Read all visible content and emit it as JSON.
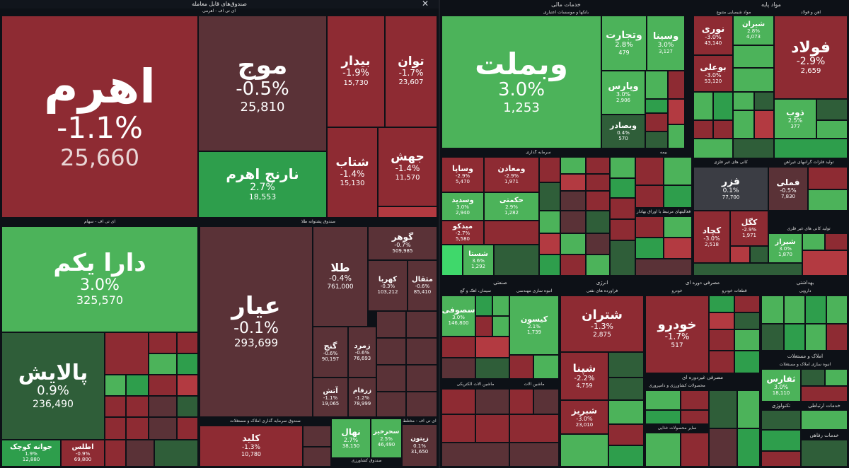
{
  "sections": {
    "etf": "صندوق‌های قابل معامله",
    "etf_leveraged": "ای تی اف - اهرمی",
    "etf_equity": "ای تی اف - سهام",
    "etf_gold": "صندوق پشتوانه طلا",
    "etf_realestate": "صندوق سرمایه گذاری املاک و مستغلات",
    "etf_agri": "صندوق کشاورزی",
    "etf_mixed": "ای تی اف - مختلط",
    "financial": "خدمات مالی",
    "banks": "بانکها و موسسات اعتباری",
    "investment": "سرمایه گذاری",
    "insurance": "بیمه",
    "financial_other": "فعالیتهای مرتبط با اوراق بهادار",
    "basic": "مواد پایه",
    "chemicals": "مواد شیمیایی متنوع",
    "steel": "آهن و فولاد",
    "nonmetal": "کانی های غیر فلزی",
    "nonmetal_products": "تولید کانی های غیر فلزی",
    "ore": "تولید فلزات گرانبهای غیرآهن",
    "industrial": "صنعتی",
    "cement": "سیمان، آهک و گچ",
    "engineering": "انبوه سازی مهندسی",
    "electrical": "ماشین آلات الکتریکی",
    "machinery": "ماشین آلات",
    "energy": "انرژی",
    "refinery": "فراورده های نفتی",
    "cyclical": "مصرفی دوره ای",
    "auto": "خودرو",
    "autoparts": "قطعات خودرو",
    "noncyclical": "مصرفی غیردوره ای",
    "agri_products": "محصولات کشاورزی و دامپروری",
    "food": "سایر محصولات غذایی",
    "health": "بهداشتی",
    "pharma": "دارویی",
    "realestate": "املاک و مستغلات",
    "construction": "انبوه سازی املاک و مستغلات",
    "tech": "تکنولوژی",
    "telecom": "خدمات ارتباطی",
    "welfare": "خدمات رفاهی"
  },
  "tiles": {
    "ahrom": {
      "name": "اهرم",
      "pct": "-1.1%",
      "val": "25,660"
    },
    "moj": {
      "name": "موج",
      "pct": "-0.5%",
      "val": "25,810"
    },
    "narenj": {
      "name": "نارنج اهرم",
      "pct": "2.7%",
      "val": "18,553"
    },
    "bidar": {
      "name": "بیدار",
      "pct": "-1.9%",
      "val": "15,730"
    },
    "tavan": {
      "name": "توان",
      "pct": "-1.7%",
      "val": "23,607"
    },
    "shetab": {
      "name": "شتاب",
      "pct": "-1.4%",
      "val": "15,130"
    },
    "jahesh": {
      "name": "جهش",
      "pct": "-1.4%",
      "val": "11,570"
    },
    "daraykom": {
      "name": "دارا یکم",
      "pct": "3.0%",
      "val": "325,570"
    },
    "palayesh": {
      "name": "پالایش",
      "pct": "0.9%",
      "val": "236,490"
    },
    "javaneh": {
      "name": "جوانه کوچک",
      "pct": "1.9%",
      "val": "12,880"
    },
    "atlas": {
      "name": "اطلس",
      "pct": "-0.9%",
      "val": "69,800"
    },
    "ayar": {
      "name": "عیار",
      "pct": "-0.1%",
      "val": "293,699"
    },
    "tala": {
      "name": "طلا",
      "pct": "-0.4%",
      "val": "761,000"
    },
    "gohar": {
      "name": "گوهر",
      "pct": "-0.7%",
      "val": "509,985"
    },
    "kahroba": {
      "name": "کهربا",
      "pct": "-0.3%",
      "val": "103,212"
    },
    "mesghal": {
      "name": "مثقال",
      "pct": "-0.6%",
      "val": "85,410"
    },
    "gonj": {
      "name": "گنج",
      "pct": "-0.6%",
      "val": "90,197"
    },
    "zomorod": {
      "name": "زمرد",
      "pct": "-0.6%",
      "val": "76,693"
    },
    "atash": {
      "name": "آتش",
      "pct": "-1.1%",
      "val": "19,065"
    },
    "zarfam": {
      "name": "زرفام",
      "pct": "-1.2%",
      "val": "78,999"
    },
    "kelid": {
      "name": "کلید",
      "pct": "-1.3%",
      "val": "10,780"
    },
    "nahal": {
      "name": "نهال",
      "pct": "2.7%",
      "val": "38,150"
    },
    "sahrakhiz": {
      "name": "سحرخیز",
      "pct": "2.5%",
      "val": "46,490"
    },
    "zeytoon": {
      "name": "زیتون",
      "pct": "0.1%",
      "val": "31,650"
    },
    "vabmellat": {
      "name": "وبملت",
      "pct": "3.0%",
      "val": "1,253"
    },
    "vtejarat": {
      "name": "وتجارت",
      "pct": "2.8%",
      "val": "479"
    },
    "vsina": {
      "name": "وسینا",
      "pct": "3.0%",
      "val": "3,127"
    },
    "vpars": {
      "name": "وپارس",
      "pct": "3.0%",
      "val": "2,906"
    },
    "vbsader": {
      "name": "وبصادر",
      "pct": "0.4%",
      "val": "570"
    },
    "vsapa": {
      "name": "وساپا",
      "pct": "-2.9%",
      "val": "5,470"
    },
    "vmaaden": {
      "name": "ومعادن",
      "pct": "-2.9%",
      "val": "1,971"
    },
    "vsadid": {
      "name": "وسدید",
      "pct": "3.0%",
      "val": "2,940"
    },
    "hekmati": {
      "name": "حکمتی",
      "pct": "2.9%",
      "val": "1,282"
    },
    "midkoo": {
      "name": "میدکو",
      "pct": "-2.7%",
      "val": "5,580"
    },
    "shasta": {
      "name": "شستا",
      "pct": "3.6%",
      "val": "1,292"
    },
    "folad": {
      "name": "فولاد",
      "pct": "-2.9%",
      "val": "2,659"
    },
    "noori": {
      "name": "نوری",
      "pct": "-3.0%",
      "val": "43,140"
    },
    "shiran": {
      "name": "شیران",
      "pct": "2.8%",
      "val": "4,073"
    },
    "buali": {
      "name": "بوعلی",
      "pct": "-3.0%",
      "val": "53,120"
    },
    "zob": {
      "name": "ذوب",
      "pct": "2.5%",
      "val": "377"
    },
    "fazar": {
      "name": "فزر",
      "pct": "0.1%",
      "val": "77,700"
    },
    "femli": {
      "name": "فملی",
      "pct": "-0.5%",
      "val": "7,830"
    },
    "kegol": {
      "name": "کگل",
      "pct": "-2.9%",
      "val": "1,971"
    },
    "kechad": {
      "name": "کچاد",
      "pct": "-3.0%",
      "val": "2,518"
    },
    "shiraz": {
      "name": "شیراز",
      "pct": "3.0%",
      "val": "1,870"
    },
    "kesoon": {
      "name": "کیسون",
      "pct": "2.1%",
      "val": "1,739"
    },
    "sesoofi": {
      "name": "سصوفی",
      "pct": "3.0%",
      "val": "146,800"
    },
    "shatran": {
      "name": "شتران",
      "pct": "-1.3%",
      "val": "2,875"
    },
    "shepna": {
      "name": "شپنا",
      "pct": "-2.2%",
      "val": "4,759"
    },
    "shabriz": {
      "name": "شبریز",
      "pct": "-3.0%",
      "val": "23,010"
    },
    "khodro": {
      "name": "خودرو",
      "pct": "-1.7%",
      "val": "517"
    },
    "tfars": {
      "name": "ثفارس",
      "pct": "3.0%",
      "val": "18,110"
    }
  },
  "colors": {
    "red": "#8e2b33",
    "green": "#2e9e4c",
    "dark": "#0d1117"
  },
  "icons": {
    "close": "close-icon"
  }
}
